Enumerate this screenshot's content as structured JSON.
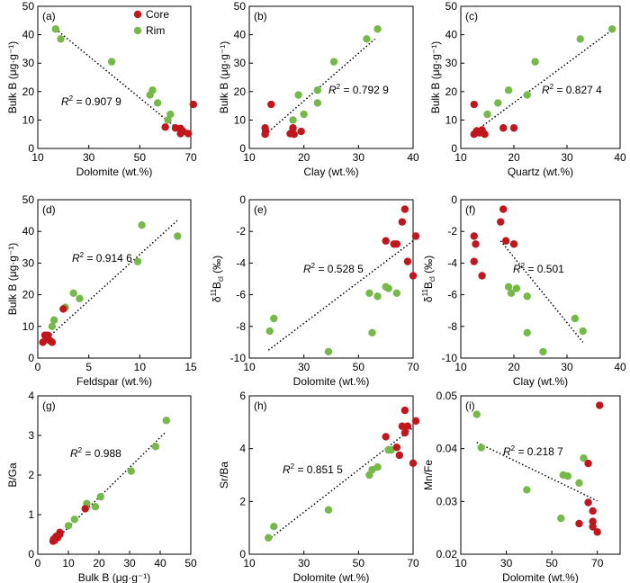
{
  "legend": [
    {
      "name": "Core",
      "color": "#c0161d"
    },
    {
      "name": "Rim",
      "color": "#76b84a"
    }
  ],
  "chart_data": [
    {
      "type": "scatter",
      "panel": "(a)",
      "xlabel": "Dolomite (wt.%)",
      "ylabel": "Bulk B (μg·g⁻¹)",
      "xlim": [
        10,
        70
      ],
      "ylim": [
        0,
        50
      ],
      "xticks": [
        10,
        30,
        50,
        70
      ],
      "yticks": [
        0,
        10,
        20,
        30,
        40,
        50
      ],
      "r2": {
        "prefix": "R",
        "sup": "2",
        "value": " = 0.907 9"
      },
      "fit": [
        [
          17,
          42
        ],
        [
          66,
          6
        ]
      ],
      "series": [
        {
          "name": "Core",
          "points": [
            [
              71,
              15.5
            ],
            [
              64,
              7.2
            ],
            [
              66,
              7.0
            ],
            [
              67,
              6.0
            ],
            [
              69,
              5.2
            ],
            [
              66,
              5.2
            ],
            [
              60,
              7.5
            ]
          ]
        },
        {
          "name": "Rim",
          "points": [
            [
              17,
              42
            ],
            [
              19,
              38.5
            ],
            [
              39,
              30.5
            ],
            [
              55,
              20.5
            ],
            [
              54,
              18.8
            ],
            [
              57,
              16
            ],
            [
              62,
              12
            ],
            [
              61,
              10
            ]
          ]
        }
      ]
    },
    {
      "type": "scatter",
      "panel": "(b)",
      "xlabel": "Clay (wt.%)",
      "ylabel": "Bulk B (μg·g⁻¹)",
      "xlim": [
        10,
        40
      ],
      "ylim": [
        0,
        50
      ],
      "xticks": [
        10,
        20,
        30,
        40
      ],
      "yticks": [
        0,
        10,
        20,
        30,
        40,
        50
      ],
      "r2": {
        "prefix": "R",
        "sup": "2",
        "value": " = 0.792 9"
      },
      "fit": [
        [
          13,
          5
        ],
        [
          33,
          38.5
        ]
      ],
      "series": [
        {
          "name": "Core",
          "points": [
            [
              14,
              15.5
            ],
            [
              12.9,
              7.2
            ],
            [
              13,
              6
            ],
            [
              12.9,
              5
            ],
            [
              17.5,
              5.2
            ],
            [
              18,
              7.2
            ],
            [
              19.5,
              6
            ],
            [
              18.2,
              5
            ]
          ]
        },
        {
          "name": "Rim",
          "points": [
            [
              33.5,
              42
            ],
            [
              31.5,
              38.5
            ],
            [
              25.5,
              30.5
            ],
            [
              22.5,
              20.5
            ],
            [
              19,
              18.8
            ],
            [
              22.5,
              16
            ],
            [
              20,
              12
            ],
            [
              18,
              10
            ]
          ]
        }
      ]
    },
    {
      "type": "scatter",
      "panel": "(c)",
      "xlabel": "Quartz (wt.%)",
      "ylabel": "Bulk B (μg·g⁻¹)",
      "xlim": [
        10,
        40
      ],
      "ylim": [
        0,
        50
      ],
      "xticks": [
        10,
        20,
        30,
        40
      ],
      "yticks": [
        0,
        10,
        20,
        30,
        40,
        50
      ],
      "r2": {
        "prefix": "R",
        "sup": "2",
        "value": " = 0.827 4"
      },
      "fit": [
        [
          12,
          5
        ],
        [
          38,
          41
        ]
      ],
      "series": [
        {
          "name": "Core",
          "points": [
            [
              12.5,
              15.5
            ],
            [
              12.5,
              5
            ],
            [
              13.5,
              5.5
            ],
            [
              14,
              6.5
            ],
            [
              14.5,
              5
            ],
            [
              18,
              7.2
            ],
            [
              20,
              7.2
            ],
            [
              13,
              6.2
            ]
          ]
        },
        {
          "name": "Rim",
          "points": [
            [
              38.5,
              42
            ],
            [
              32.5,
              38.5
            ],
            [
              24,
              30.5
            ],
            [
              19,
              20.5
            ],
            [
              22.5,
              18.8
            ],
            [
              17,
              16
            ],
            [
              15,
              12
            ],
            [
              14,
              6
            ]
          ]
        }
      ]
    },
    {
      "type": "scatter",
      "panel": "(d)",
      "xlabel": "Feldspar (wt.%)",
      "ylabel": "Bulk B (μg·g⁻¹)",
      "xlim": [
        0,
        15
      ],
      "ylim": [
        0,
        50
      ],
      "xticks": [
        0,
        5,
        10,
        15
      ],
      "yticks": [
        0,
        10,
        20,
        30,
        40,
        50
      ],
      "r2": {
        "prefix": "R",
        "sup": "2",
        "value": " = 0.914 6"
      },
      "fit": [
        [
          0.5,
          5
        ],
        [
          13.7,
          43.5
        ]
      ],
      "series": [
        {
          "name": "Core",
          "points": [
            [
              2.5,
              15.5
            ],
            [
              0.7,
              7.2
            ],
            [
              1,
              7.2
            ],
            [
              0.8,
              6
            ],
            [
              1.2,
              5.5
            ],
            [
              0.5,
              5
            ],
            [
              1.4,
              5
            ],
            [
              0.9,
              6.3
            ]
          ]
        },
        {
          "name": "Rim",
          "points": [
            [
              10.2,
              42
            ],
            [
              13.7,
              38.5
            ],
            [
              9.8,
              30.5
            ],
            [
              3.5,
              20.5
            ],
            [
              4.1,
              18.8
            ],
            [
              2.7,
              16
            ],
            [
              1.6,
              12
            ],
            [
              1.4,
              10
            ]
          ]
        }
      ]
    },
    {
      "type": "scatter",
      "panel": "(e)",
      "xlabel": "Dolomite (wt.%)",
      "ylabel": "δ¹¹B_cl (‰)",
      "ylabel_main": "δ",
      "ylabel_sup": "11",
      "ylabel_rest": "B",
      "ylabel_sub": "cl",
      "ylabel_unit": " (‰)",
      "xlim": [
        10,
        70
      ],
      "ylim": [
        -10,
        0
      ],
      "xticks": [
        10,
        30,
        50,
        70
      ],
      "yticks": [
        -10,
        -8,
        -6,
        -4,
        -2,
        0
      ],
      "r2": {
        "prefix": "R",
        "sup": "2",
        "value": " = 0.528 5"
      },
      "fit": [
        [
          17,
          -9.5
        ],
        [
          70,
          -2.6
        ]
      ],
      "series": [
        {
          "name": "Core",
          "points": [
            [
              67,
              -0.6
            ],
            [
              66,
              -1.4
            ],
            [
              71,
              -2.3
            ],
            [
              60,
              -2.6
            ],
            [
              64,
              -2.8
            ],
            [
              63,
              -2.8
            ],
            [
              68,
              -3.9
            ],
            [
              70,
              -4.8
            ]
          ]
        },
        {
          "name": "Rim",
          "points": [
            [
              19,
              -7.5
            ],
            [
              17.5,
              -8.3
            ],
            [
              39,
              -9.6
            ],
            [
              55,
              -8.4
            ],
            [
              54,
              -5.9
            ],
            [
              60,
              -5.5
            ],
            [
              61,
              -5.6
            ],
            [
              64,
              -5.9
            ],
            [
              57,
              -6.1
            ]
          ]
        }
      ]
    },
    {
      "type": "scatter",
      "panel": "(f)",
      "xlabel": "Clay (wt.%)",
      "ylabel": "δ¹¹B_cl (‰)",
      "ylabel_main": "δ",
      "ylabel_sup": "11",
      "ylabel_rest": "B",
      "ylabel_sub": "cl",
      "ylabel_unit": " (‰)",
      "xlim": [
        10,
        40
      ],
      "ylim": [
        -10,
        0
      ],
      "xticks": [
        10,
        20,
        30,
        40
      ],
      "yticks": [
        -10,
        -8,
        -6,
        -4,
        -2,
        0
      ],
      "r2": {
        "prefix": "R",
        "sup": "2",
        "value": " = 0.501"
      },
      "fit": [
        [
          17.5,
          -2.6
        ],
        [
          33,
          -9
        ]
      ],
      "series": [
        {
          "name": "Core",
          "points": [
            [
              18,
              -0.6
            ],
            [
              17.5,
              -1.4
            ],
            [
              12.5,
              -2.3
            ],
            [
              18.5,
              -2.6
            ],
            [
              20,
              -2.8
            ],
            [
              12.8,
              -2.8
            ],
            [
              12.5,
              -3.9
            ],
            [
              14,
              -4.8
            ]
          ]
        },
        {
          "name": "Rim",
          "points": [
            [
              31.5,
              -7.5
            ],
            [
              33,
              -8.3
            ],
            [
              25.5,
              -9.6
            ],
            [
              22.5,
              -8.4
            ],
            [
              22.5,
              -6.1
            ],
            [
              19,
              -5.5
            ],
            [
              20.5,
              -5.6
            ],
            [
              19.5,
              -5.9
            ]
          ]
        }
      ]
    },
    {
      "type": "scatter",
      "panel": "(g)",
      "xlabel": "Bulk B (μg·g⁻¹)",
      "ylabel": "B/Ga",
      "xlim": [
        0,
        50
      ],
      "ylim": [
        0,
        4
      ],
      "xticks": [
        0,
        10,
        20,
        30,
        40,
        50
      ],
      "yticks": [
        0,
        1,
        2,
        3,
        4
      ],
      "r2": {
        "prefix": "R",
        "sup": "2",
        "value": " = 0.988"
      },
      "fit": [
        [
          5,
          0.3
        ],
        [
          42,
          3.1
        ]
      ],
      "series": [
        {
          "name": "Core",
          "points": [
            [
              15.5,
              1.15
            ],
            [
              7.2,
              0.55
            ],
            [
              7.2,
              0.5
            ],
            [
              6,
              0.45
            ],
            [
              5.5,
              0.35
            ],
            [
              5,
              0.33
            ],
            [
              5.2,
              0.38
            ],
            [
              6.5,
              0.42
            ]
          ]
        },
        {
          "name": "Rim",
          "points": [
            [
              42,
              3.38
            ],
            [
              38.5,
              2.72
            ],
            [
              30.5,
              2.1
            ],
            [
              20.5,
              1.45
            ],
            [
              18.8,
              1.2
            ],
            [
              16,
              1.28
            ],
            [
              12,
              0.88
            ],
            [
              10,
              0.72
            ]
          ]
        }
      ]
    },
    {
      "type": "scatter",
      "panel": "(h)",
      "xlabel": "Dolomite (wt.%)",
      "ylabel": "Sr/Ba",
      "xlim": [
        10,
        70
      ],
      "ylim": [
        0,
        6
      ],
      "xticks": [
        10,
        30,
        50,
        70
      ],
      "yticks": [
        0,
        2,
        4,
        6
      ],
      "r2": {
        "prefix": "R",
        "sup": "2",
        "value": " = 0.851 5"
      },
      "fit": [
        [
          17,
          0.55
        ],
        [
          70,
          4.8
        ]
      ],
      "series": [
        {
          "name": "Core",
          "points": [
            [
              67,
              5.45
            ],
            [
              66,
              4.85
            ],
            [
              68,
              4.85
            ],
            [
              71,
              5.05
            ],
            [
              60,
              4.45
            ],
            [
              64,
              4.05
            ],
            [
              67,
              4.6
            ],
            [
              65,
              3.75
            ],
            [
              70,
              3.45
            ]
          ]
        },
        {
          "name": "Rim",
          "points": [
            [
              17,
              0.62
            ],
            [
              19,
              1.05
            ],
            [
              39,
              1.68
            ],
            [
              54,
              3.0
            ],
            [
              55,
              3.2
            ],
            [
              57,
              3.3
            ],
            [
              61,
              3.95
            ],
            [
              62,
              3.95
            ]
          ]
        }
      ]
    },
    {
      "type": "scatter",
      "panel": "(i)",
      "xlabel": "Dolomite (wt.%)",
      "ylabel": "Mn/Fe",
      "xlim": [
        10,
        80
      ],
      "ylim": [
        0.02,
        0.05
      ],
      "xticks": [
        10,
        30,
        50,
        70
      ],
      "yticks": [
        0.02,
        0.03,
        0.04,
        0.05
      ],
      "r2": {
        "prefix": "R",
        "sup": "2",
        "value": " = 0.218 7"
      },
      "fit": [
        [
          17,
          0.0412
        ],
        [
          70,
          0.0301
        ]
      ],
      "series": [
        {
          "name": "Core",
          "points": [
            [
              71,
              0.0482
            ],
            [
              66,
              0.0372
            ],
            [
              66,
              0.0298
            ],
            [
              68,
              0.0282
            ],
            [
              68,
              0.0262
            ],
            [
              68,
              0.0252
            ],
            [
              70,
              0.0242
            ],
            [
              62,
              0.0258
            ]
          ]
        },
        {
          "name": "Rim",
          "points": [
            [
              17,
              0.0465
            ],
            [
              19,
              0.0402
            ],
            [
              39,
              0.0322
            ],
            [
              54,
              0.0268
            ],
            [
              55,
              0.035
            ],
            [
              57,
              0.0348
            ],
            [
              62,
              0.0335
            ],
            [
              64,
              0.0382
            ]
          ]
        }
      ]
    }
  ]
}
